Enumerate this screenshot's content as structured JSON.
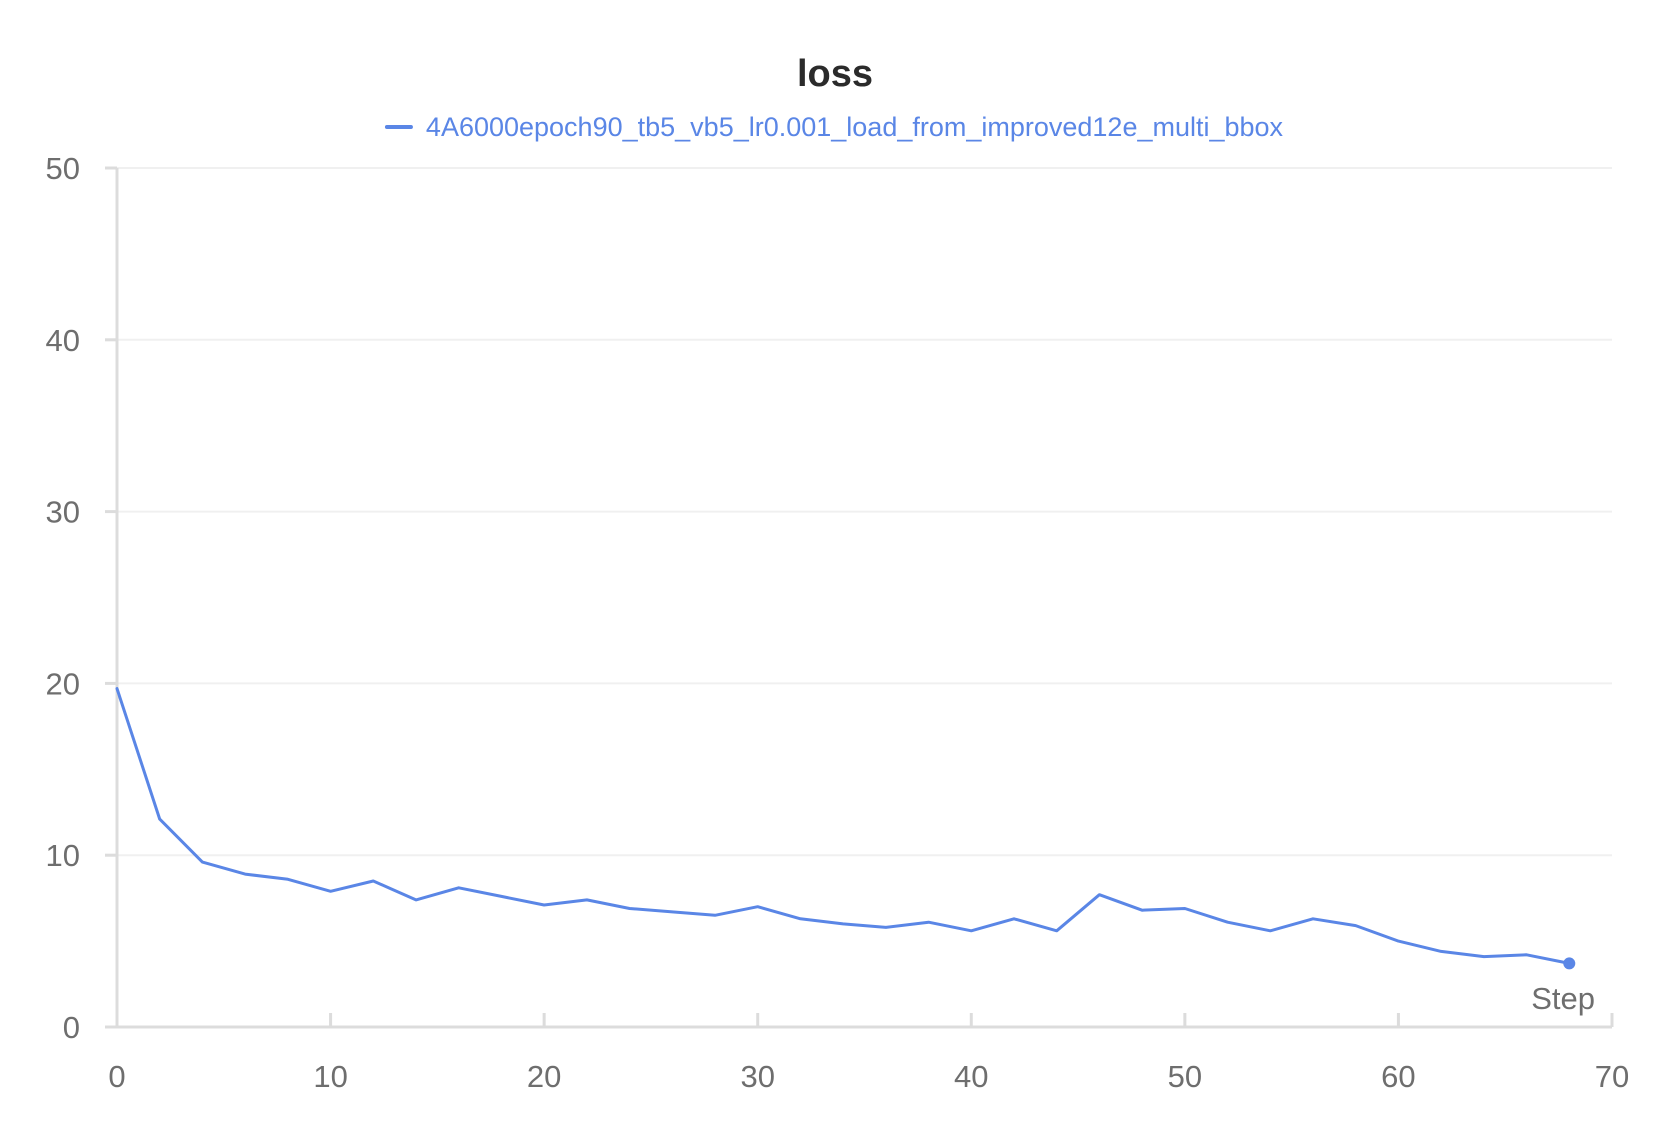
{
  "colors": {
    "series": "#5a86e6",
    "grid": "#f0f0f0",
    "axis": "#dcdcdc",
    "tick_text": "#6e6e6e",
    "title": "#2b2b2b"
  },
  "chart_data": {
    "type": "line",
    "title": "loss",
    "xlabel": "Step",
    "ylabel": "",
    "xlim": [
      0,
      70
    ],
    "ylim": [
      0,
      50
    ],
    "xticks": [
      0,
      10,
      20,
      30,
      40,
      50,
      60,
      70
    ],
    "yticks": [
      0,
      10,
      20,
      30,
      40,
      50
    ],
    "grid": true,
    "legend_position": "top",
    "series": [
      {
        "name": "4A6000epoch90_tb5_vb5_lr0.001_load_from_improved12e_multi_bbox",
        "color": "#5a86e6",
        "x": [
          0,
          2,
          4,
          6,
          8,
          10,
          12,
          14,
          16,
          18,
          20,
          22,
          24,
          26,
          28,
          30,
          32,
          34,
          36,
          38,
          40,
          42,
          44,
          46,
          48,
          50,
          52,
          54,
          56,
          58,
          60,
          62,
          64,
          66,
          68
        ],
        "y": [
          19.7,
          12.1,
          9.6,
          8.9,
          8.6,
          7.9,
          8.5,
          7.4,
          8.1,
          7.6,
          7.1,
          7.4,
          6.9,
          6.7,
          6.5,
          7.0,
          6.3,
          6.0,
          5.8,
          6.1,
          5.6,
          6.3,
          5.6,
          7.7,
          6.8,
          6.9,
          6.1,
          5.6,
          6.3,
          5.9,
          5.0,
          4.4,
          4.1,
          4.2,
          3.7
        ]
      }
    ]
  }
}
